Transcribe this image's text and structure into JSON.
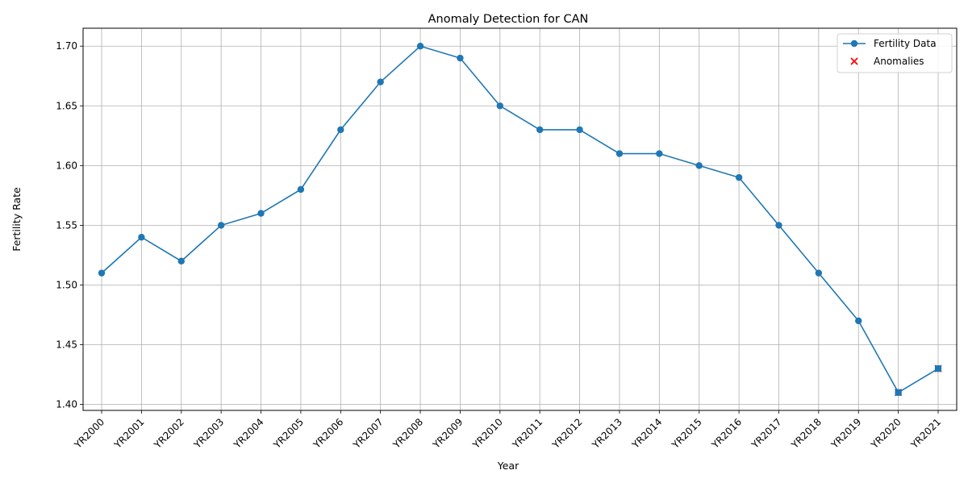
{
  "chart_data": {
    "type": "line",
    "title": "Anomaly Detection for CAN",
    "xlabel": "Year",
    "ylabel": "Fertility Rate",
    "categories": [
      "YR2000",
      "YR2001",
      "YR2002",
      "YR2003",
      "YR2004",
      "YR2005",
      "YR2006",
      "YR2007",
      "YR2008",
      "YR2009",
      "YR2010",
      "YR2011",
      "YR2012",
      "YR2013",
      "YR2014",
      "YR2015",
      "YR2016",
      "YR2017",
      "YR2018",
      "YR2019",
      "YR2020",
      "YR2021"
    ],
    "series": [
      {
        "name": "Fertility Data",
        "color": "#1f77b4",
        "marker": "circle",
        "values": [
          1.51,
          1.54,
          1.52,
          1.55,
          1.56,
          1.58,
          1.63,
          1.67,
          1.7,
          1.69,
          1.65,
          1.63,
          1.63,
          1.61,
          1.61,
          1.6,
          1.59,
          1.55,
          1.51,
          1.47,
          1.41,
          1.43
        ]
      }
    ],
    "anomalies": {
      "name": "Anomalies",
      "color": "#ff0000",
      "marker": "x",
      "categories": [
        "YR2020",
        "YR2021"
      ],
      "values": [
        1.41,
        1.43
      ]
    },
    "ylim": [
      1.395,
      1.715
    ],
    "yticks": [
      1.4,
      1.45,
      1.5,
      1.55,
      1.6,
      1.65,
      1.7
    ],
    "grid": true,
    "legend": "top-right"
  }
}
